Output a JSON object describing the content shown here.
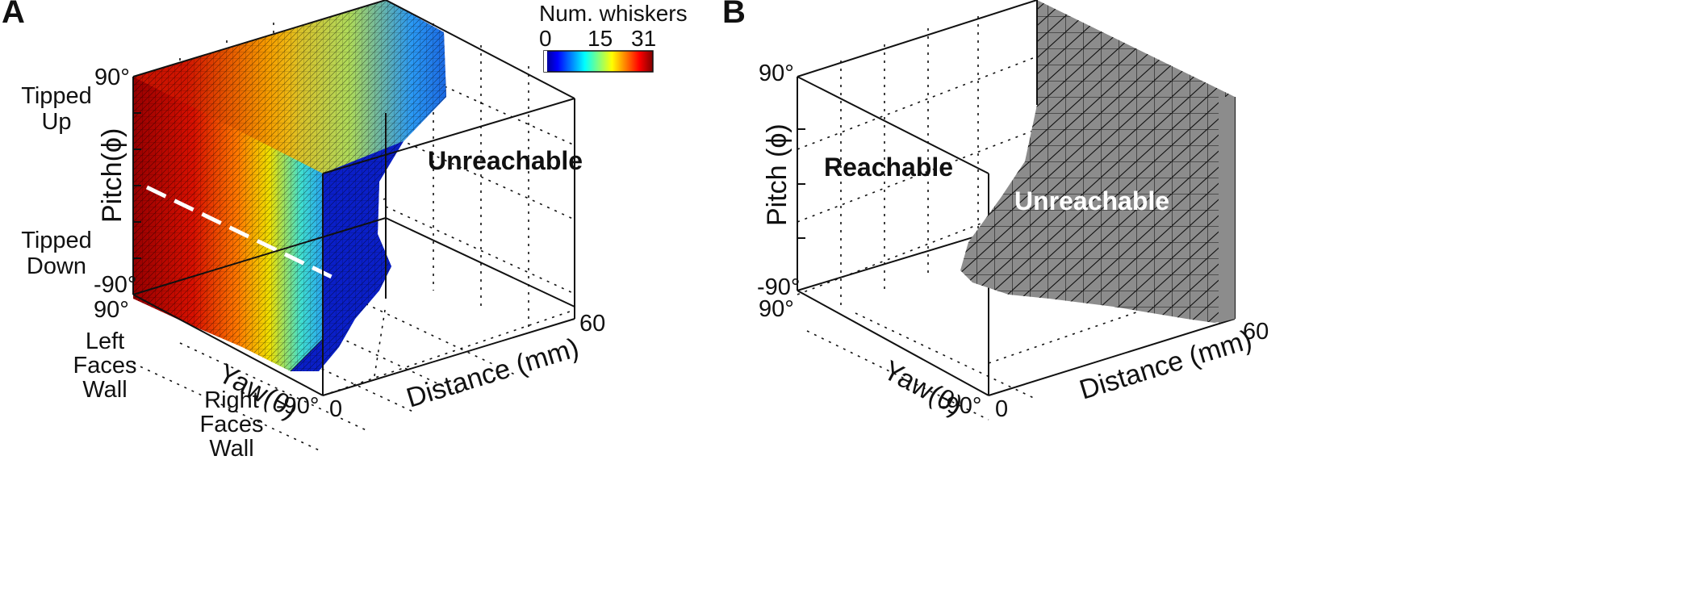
{
  "chart_data": [
    {
      "panel": "A",
      "type": "3d-surface",
      "colorbar": {
        "label": "Num. whiskers",
        "ticks": [
          "0",
          "15",
          "31"
        ],
        "range": [
          0,
          31
        ],
        "colormap": "jet"
      },
      "axes": {
        "pitch": {
          "label": "Pitch(ϕ)",
          "range": [
            -90,
            90
          ],
          "tick_labels": [
            "90°",
            "-90°"
          ],
          "annotations": [
            "Tipped Up",
            "Tipped Down"
          ]
        },
        "yaw": {
          "label": "Yaw(θ)",
          "range": [
            90,
            -90
          ],
          "tick_labels": [
            "90°",
            "-90°"
          ],
          "annotations": [
            "Left Faces Wall",
            "Right Faces Wall"
          ]
        },
        "distance": {
          "label": "Distance (mm)",
          "range": [
            0,
            60
          ],
          "tick_labels": [
            "0",
            "60"
          ]
        }
      },
      "regions": [
        "Unreachable"
      ],
      "grid": true
    },
    {
      "panel": "B",
      "type": "3d-surface",
      "axes": {
        "pitch": {
          "label": "Pitch (ϕ)",
          "range": [
            -90,
            90
          ],
          "tick_labels": [
            "90°",
            "-90°"
          ]
        },
        "yaw": {
          "label": "Yaw(θ)",
          "range": [
            90,
            -90
          ],
          "tick_labels": [
            "90°",
            "-90°"
          ]
        },
        "distance": {
          "label": "Distance (mm)",
          "range": [
            0,
            60
          ],
          "tick_labels": [
            "0",
            "60"
          ]
        }
      },
      "regions": [
        "Reachable",
        "Unreachable"
      ],
      "surface_color": "#8c8c8c",
      "grid": true
    }
  ]
}
